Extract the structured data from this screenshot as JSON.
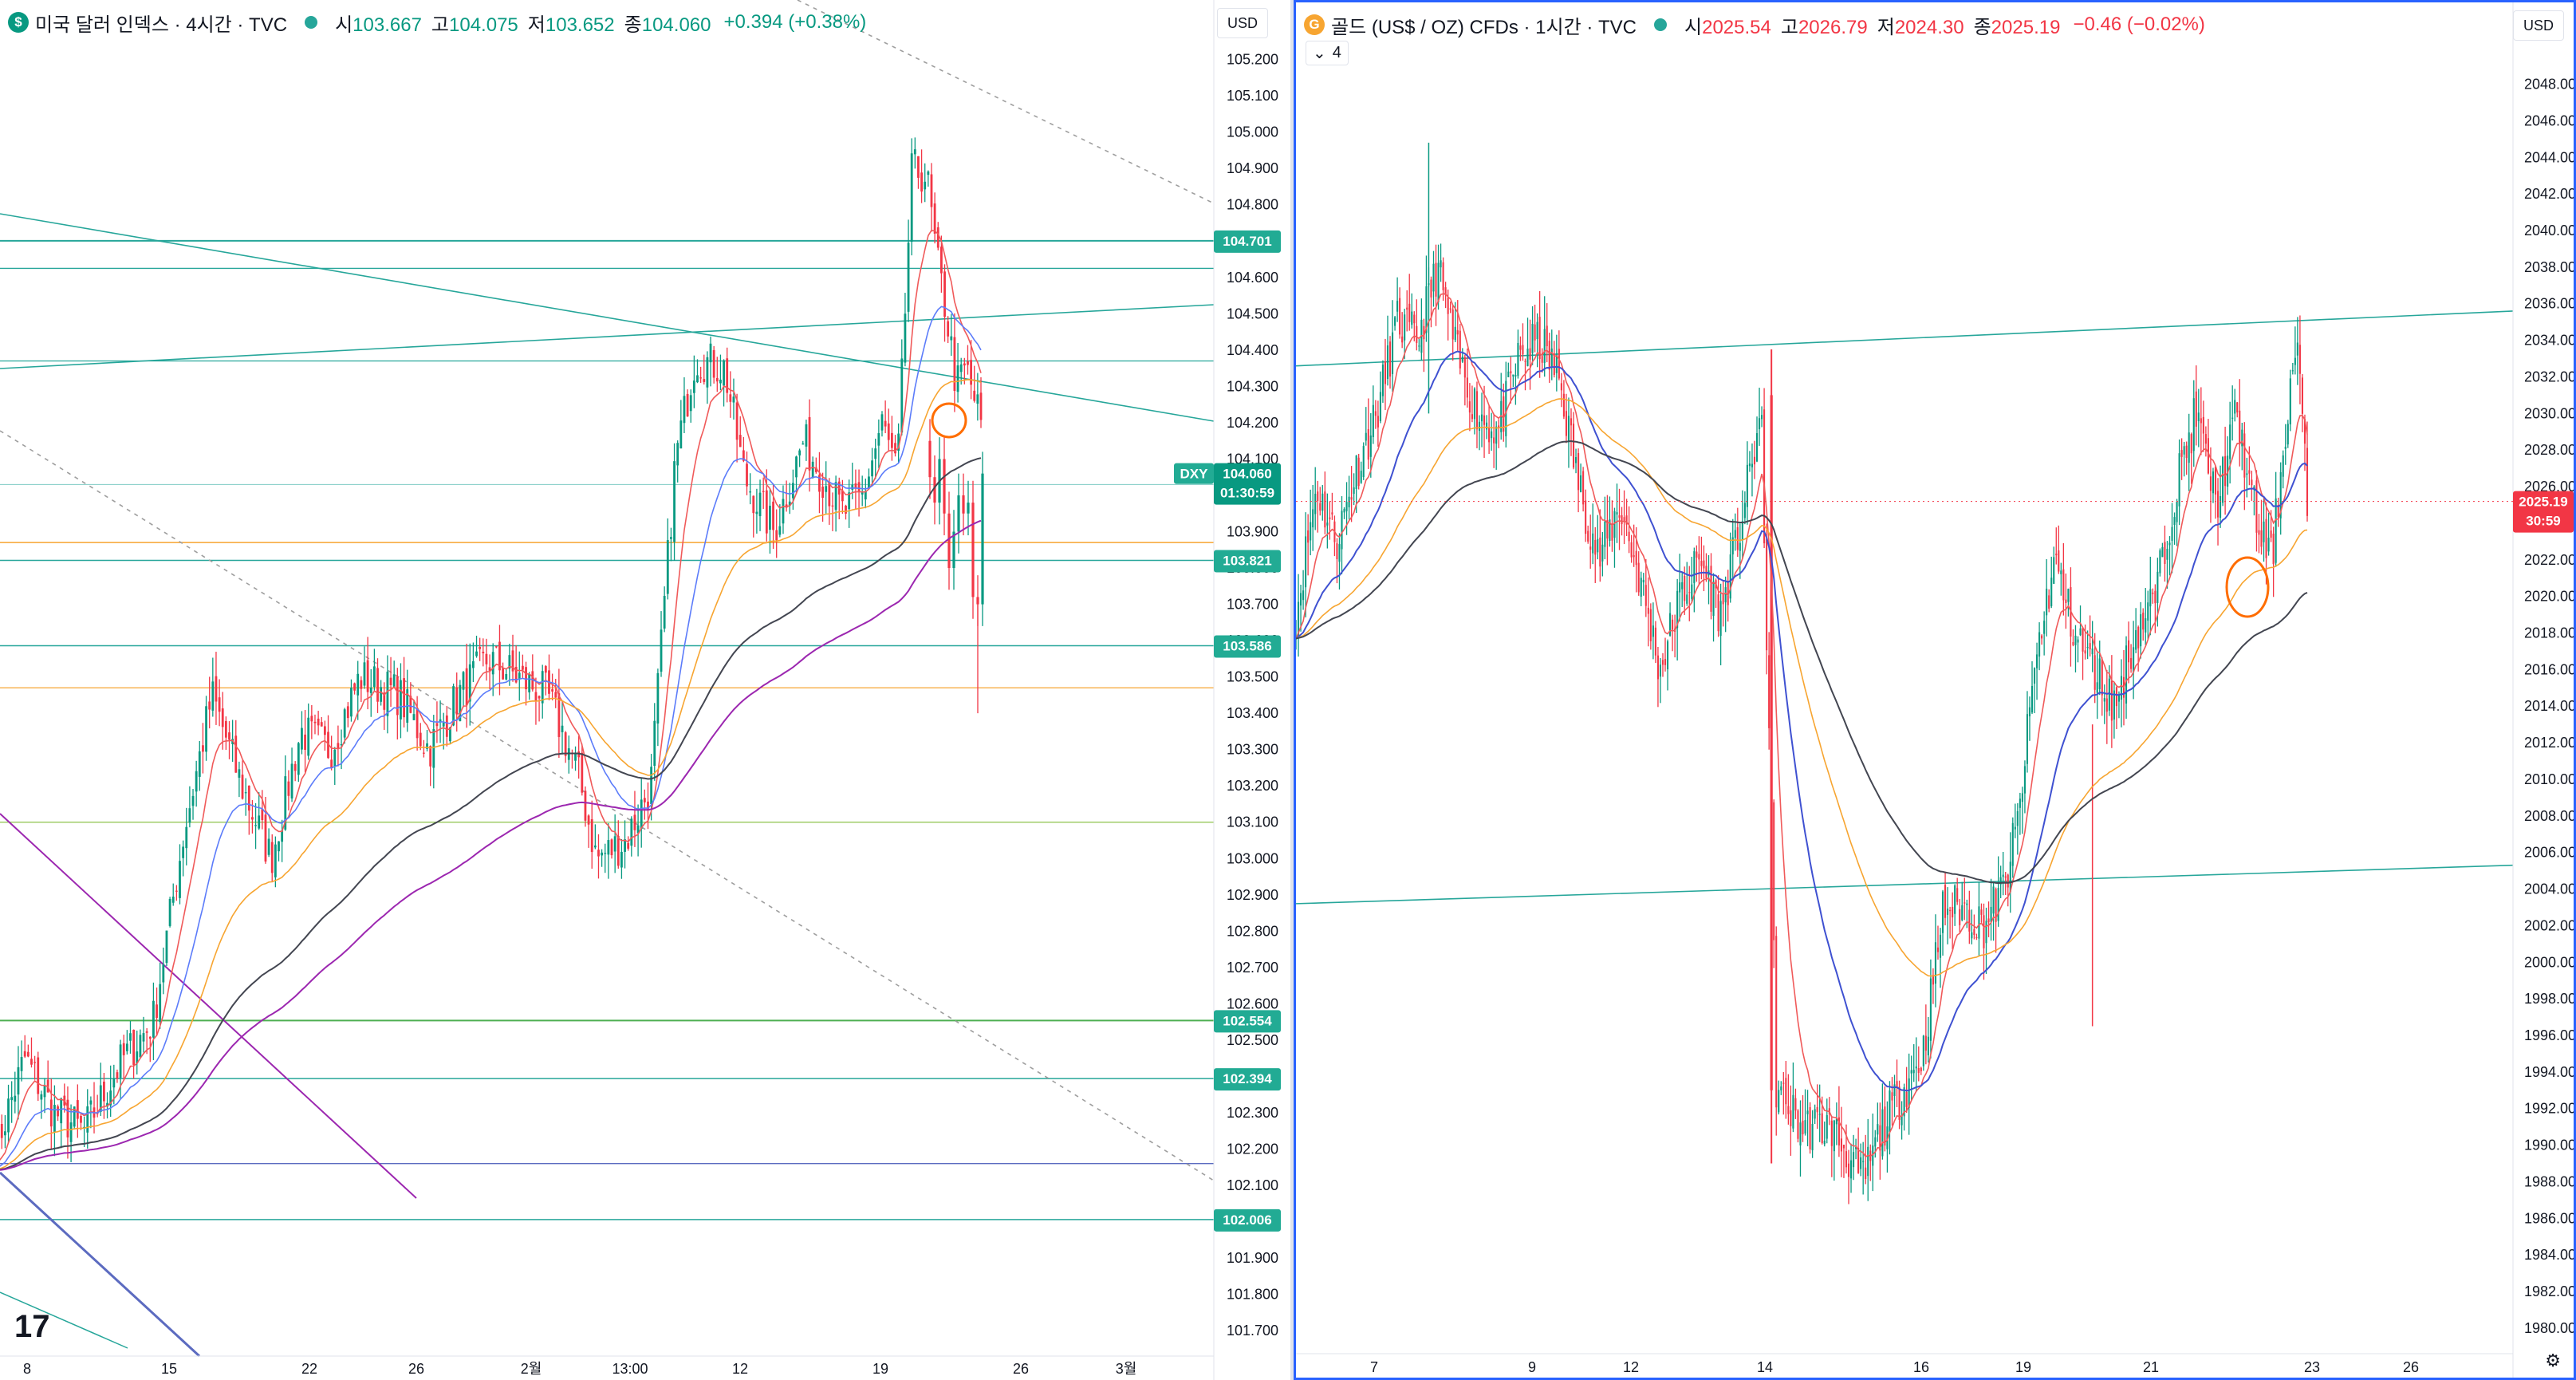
{
  "left": {
    "logo_letter": "$",
    "title": "미국 달러 인덱스 · 4시간 · TVC",
    "ohlc": {
      "open_label": "시",
      "open": "103.667",
      "high_label": "고",
      "high": "104.075",
      "low_label": "저",
      "low": "103.652",
      "close_label": "종",
      "close": "104.060",
      "change": "+0.394 (+0.38%)"
    },
    "currency": "USD",
    "y_min": 101.63,
    "y_max": 105.32,
    "y_ticks": [
      101.7,
      101.8,
      101.9,
      102.0,
      102.1,
      102.2,
      102.3,
      102.4,
      102.5,
      102.6,
      102.7,
      102.8,
      102.9,
      103.0,
      103.1,
      103.2,
      103.3,
      103.4,
      103.5,
      103.6,
      103.7,
      103.8,
      103.9,
      104.0,
      104.1,
      104.2,
      104.3,
      104.4,
      104.5,
      104.6,
      104.7,
      104.8,
      104.9,
      105.0,
      105.1,
      105.2
    ],
    "price_tags": [
      {
        "value": "104.701",
        "price": 104.701
      },
      {
        "value": "103.821",
        "price": 103.821
      },
      {
        "value": "103.586",
        "price": 103.586
      },
      {
        "value": "102.554",
        "price": 102.554
      },
      {
        "value": "102.394",
        "price": 102.394
      },
      {
        "value": "102.006",
        "price": 102.006
      }
    ],
    "current_tag": {
      "symbol": "DXY",
      "price_text": "104.060",
      "countdown": "01:30:59",
      "price": 104.06
    },
    "x_labels": [
      "8",
      "15",
      "22",
      "26",
      "2월",
      "13:00",
      "12",
      "19",
      "26",
      "3월"
    ]
  },
  "right": {
    "logo_letter": "G",
    "title": "골드 (US$ / OZ) CFDs · 1시간 · TVC",
    "ohlc": {
      "open_label": "시",
      "open": "2025.54",
      "high_label": "고",
      "high": "2026.79",
      "low_label": "저",
      "low": "2024.30",
      "close_label": "종",
      "close": "2025.19",
      "change": "−0.46 (−0.02%)"
    },
    "currency": "USD",
    "indicator_count": "4",
    "y_min": 1978.6,
    "y_max": 2051.6,
    "y_ticks": [
      1980,
      1982,
      1984,
      1986,
      1988,
      1990,
      1992,
      1994,
      1996,
      1998,
      2000,
      2002,
      2004,
      2006,
      2008,
      2010,
      2012,
      2014,
      2016,
      2018,
      2020,
      2022,
      2024,
      2026,
      2028,
      2030,
      2032,
      2034,
      2036,
      2038,
      2040,
      2042,
      2044,
      2046,
      2048
    ],
    "current_tag": {
      "price_text": "2025.19",
      "countdown": "30:59",
      "price": 2025.19
    },
    "x_labels": [
      "7",
      "9",
      "12",
      "14",
      "16",
      "19",
      "21",
      "23",
      "26"
    ]
  },
  "colors": {
    "up": "#089981",
    "down": "#f23645",
    "line_teal": "#26a69a",
    "ma_red": "#f05a5a",
    "ma_blue": "#3f51d1",
    "ma_orange": "#f7a531",
    "ma_black": "#434651",
    "ma_purple": "#9c27b0",
    "accent": "#2962ff"
  },
  "icons": {
    "tv_logo": "tradingview-logo-icon",
    "settings": "gear-icon",
    "eye": "eye-icon",
    "chevron": "chevron-down-icon"
  }
}
